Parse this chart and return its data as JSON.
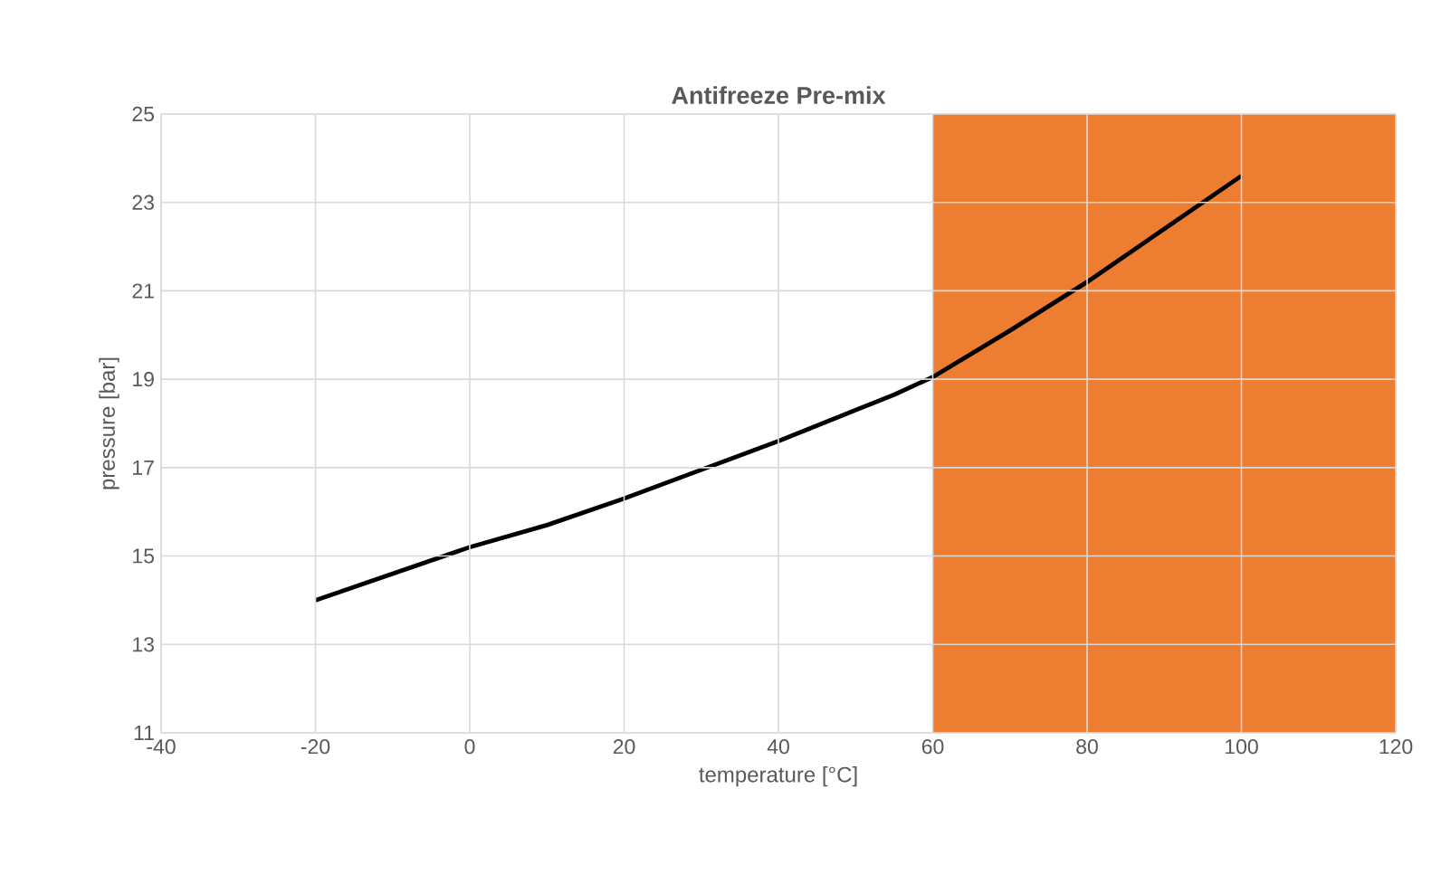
{
  "chart_data": {
    "type": "line",
    "title": "Antifreeze Pre-mix",
    "xlabel": "temperature [°C]",
    "ylabel": "pressure [bar]",
    "x": [
      -20,
      0,
      10,
      20,
      30,
      40,
      50,
      55,
      60,
      70,
      80,
      90,
      100
    ],
    "series": [
      {
        "color": "#000000",
        "values": [
          14.0,
          15.2,
          15.7,
          16.3,
          16.95,
          17.6,
          18.3,
          18.65,
          19.05,
          20.1,
          21.2,
          22.4,
          23.6
        ]
      }
    ],
    "xlim": [
      -40,
      120
    ],
    "xticks": [
      -40,
      -20,
      0,
      20,
      40,
      60,
      80,
      100,
      120
    ],
    "ylim": [
      11,
      25
    ],
    "yticks": [
      11,
      13,
      15,
      17,
      19,
      21,
      23,
      25
    ],
    "grid": true,
    "marker": "none",
    "line_style": "solid",
    "bands": [
      {
        "axis": "x",
        "from": 60,
        "to": 120,
        "color": "#ED7D31"
      }
    ]
  }
}
